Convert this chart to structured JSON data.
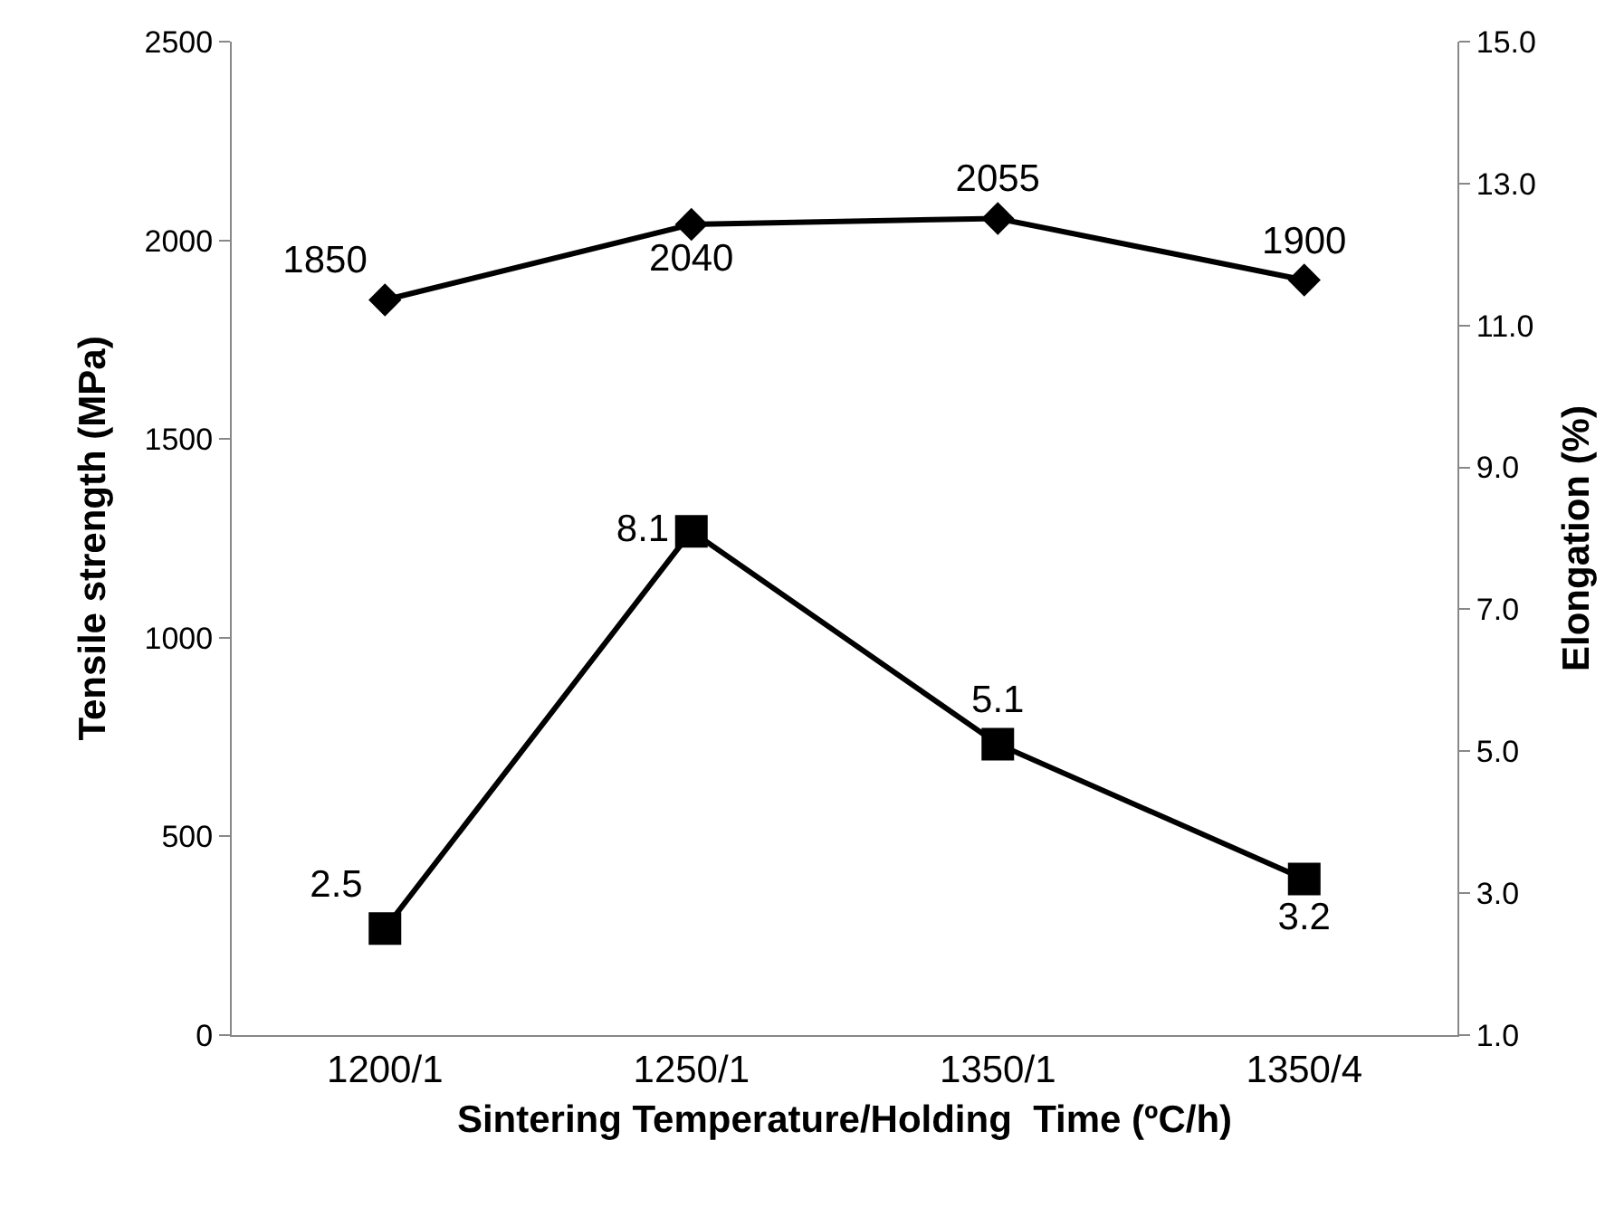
{
  "chart_data": {
    "type": "line",
    "xlabel": "Sintering Temperature/Holding  Time (ºC/h)",
    "ylabel": "Tensile strength (MPa)",
    "y2label": "Elongation (%)",
    "categories": [
      "1200/1",
      "1250/1",
      "1350/1",
      "1350/4"
    ],
    "series": [
      {
        "color": "#000000",
        "values": [
          1850,
          2040,
          2055,
          1900
        ],
        "marker": "diamond"
      },
      {
        "color": "#000000",
        "values": [
          2.5,
          8.1,
          5.1,
          3.2
        ],
        "marker": "square",
        "axis": "y2"
      }
    ],
    "ylim": [
      0,
      2500
    ],
    "yticks": [
      0,
      500,
      1000,
      1500,
      2000,
      2500
    ],
    "y2lim": [
      1,
      15
    ],
    "y2ticks": [
      {
        "value": 1,
        "label": "1.0"
      },
      {
        "value": 3,
        "label": "3.0"
      },
      {
        "value": 5,
        "label": "5.0"
      },
      {
        "value": 7,
        "label": "7.0"
      },
      {
        "value": 9,
        "label": "9.0"
      },
      {
        "value": 11,
        "label": "11.0"
      },
      {
        "value": 13,
        "label": "13.0"
      },
      {
        "value": 15,
        "label": "15.0"
      }
    ],
    "data_labels": true,
    "line_style": "solid"
  }
}
